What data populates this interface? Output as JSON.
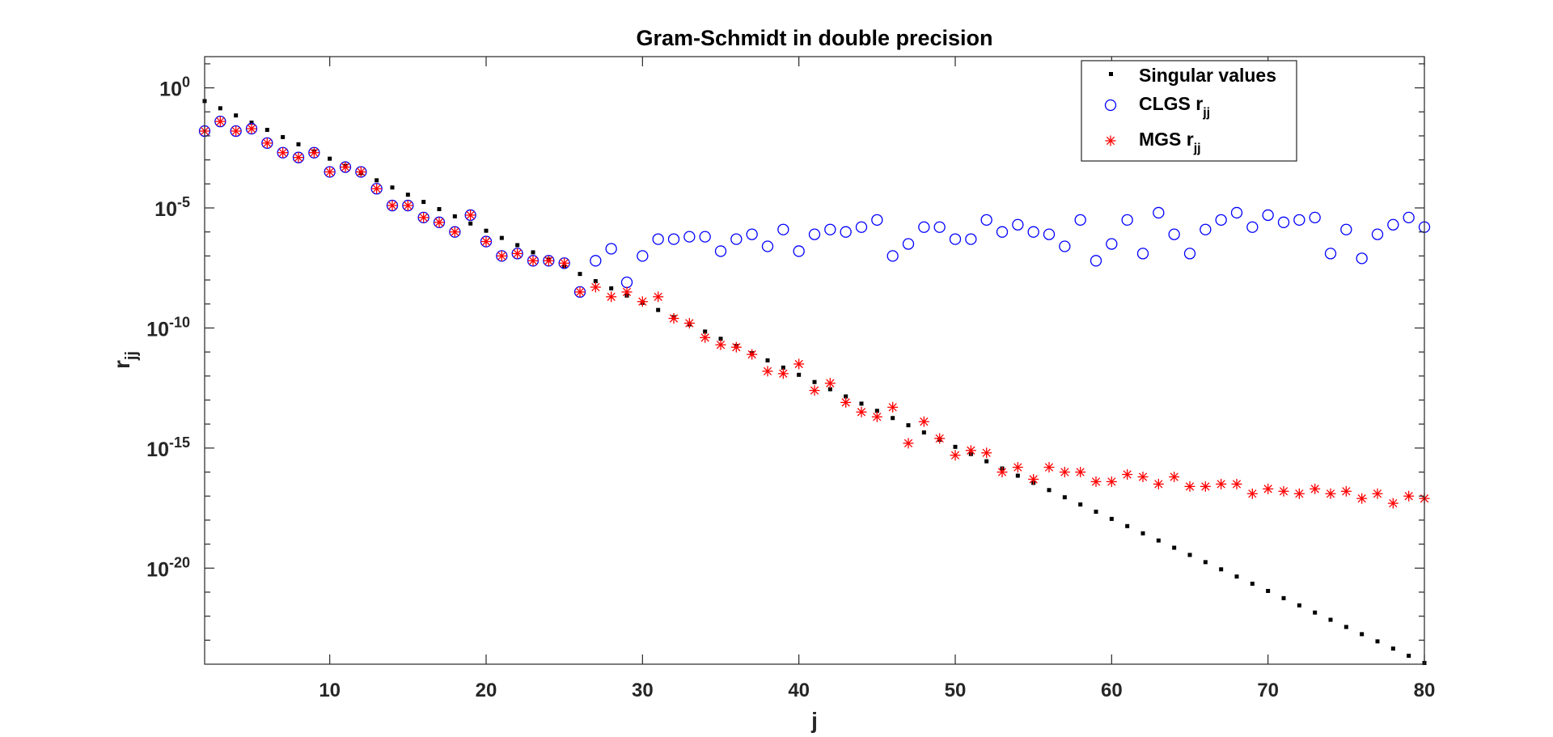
{
  "chart_data": {
    "type": "scatter",
    "title": "Gram-Schmidt in double precision",
    "xlabel": "j",
    "ylabel": {
      "base": "r",
      "sub": "jj"
    },
    "xlim": [
      2,
      80
    ],
    "ylim_log10": [
      -24,
      1.3
    ],
    "yscale": "log",
    "grid": false,
    "legend_position": "top-right",
    "xticks": [
      10,
      20,
      30,
      40,
      50,
      60,
      70,
      80
    ],
    "yticks": [
      {
        "base": "10",
        "exp": "0",
        "log10": 0
      },
      {
        "base": "10",
        "exp": "-5",
        "log10": -5
      },
      {
        "base": "10",
        "exp": "-10",
        "log10": -10
      },
      {
        "base": "10",
        "exp": "-15",
        "log10": -15
      },
      {
        "base": "10",
        "exp": "-20",
        "log10": -20
      }
    ],
    "colors": {
      "singular": "#000000",
      "clgs": "#0000ff",
      "mgs": "#ff0000",
      "axis": "#262626"
    },
    "series": [
      {
        "name": "Singular values",
        "marker": "dot",
        "x": [
          2,
          3,
          4,
          5,
          6,
          7,
          8,
          9,
          10,
          11,
          12,
          13,
          14,
          15,
          16,
          17,
          18,
          19,
          20,
          21,
          22,
          23,
          24,
          25,
          26,
          27,
          28,
          29,
          30,
          31,
          32,
          33,
          34,
          35,
          36,
          37,
          38,
          39,
          40,
          41,
          42,
          43,
          44,
          45,
          46,
          47,
          48,
          49,
          50,
          51,
          52,
          53,
          54,
          55,
          56,
          57,
          58,
          59,
          60,
          61,
          62,
          63,
          64,
          65,
          66,
          67,
          68,
          69,
          70,
          71,
          72,
          73,
          74,
          75,
          76,
          77,
          78,
          79,
          80
        ],
        "y_log10": [
          -0.55,
          -0.85,
          -1.15,
          -1.45,
          -1.75,
          -2.05,
          -2.35,
          -2.65,
          -2.95,
          -3.25,
          -3.55,
          -3.85,
          -4.15,
          -4.45,
          -4.75,
          -5.05,
          -5.35,
          -5.65,
          -5.95,
          -6.25,
          -6.55,
          -6.85,
          -7.15,
          -7.45,
          -7.75,
          -8.05,
          -8.35,
          -8.65,
          -8.95,
          -9.25,
          -9.55,
          -9.85,
          -10.15,
          -10.45,
          -10.75,
          -11.05,
          -11.35,
          -11.65,
          -11.95,
          -12.25,
          -12.55,
          -12.85,
          -13.15,
          -13.45,
          -13.75,
          -14.05,
          -14.35,
          -14.65,
          -14.95,
          -15.25,
          -15.55,
          -15.85,
          -16.15,
          -16.45,
          -16.75,
          -17.05,
          -17.35,
          -17.65,
          -17.95,
          -18.25,
          -18.55,
          -18.85,
          -19.15,
          -19.45,
          -19.75,
          -20.05,
          -20.35,
          -20.65,
          -20.95,
          -21.25,
          -21.55,
          -21.85,
          -22.15,
          -22.45,
          -22.75,
          -23.05,
          -23.35,
          -23.65,
          -23.95
        ]
      },
      {
        "name": "CLGS r",
        "name_sub": "jj",
        "marker": "circle",
        "x": [
          2,
          3,
          4,
          5,
          6,
          7,
          8,
          9,
          10,
          11,
          12,
          13,
          14,
          15,
          16,
          17,
          18,
          19,
          20,
          21,
          22,
          23,
          24,
          25,
          26,
          27,
          28,
          29,
          30,
          31,
          32,
          33,
          34,
          35,
          36,
          37,
          38,
          39,
          40,
          41,
          42,
          43,
          44,
          45,
          46,
          47,
          48,
          49,
          50,
          51,
          52,
          53,
          54,
          55,
          56,
          57,
          58,
          59,
          60,
          61,
          62,
          63,
          64,
          65,
          66,
          67,
          68,
          69,
          70,
          71,
          72,
          73,
          74,
          75,
          76,
          77,
          78,
          79,
          80
        ],
        "y_log10": [
          -1.8,
          -1.4,
          -1.8,
          -1.7,
          -2.3,
          -2.7,
          -2.9,
          -2.7,
          -3.5,
          -3.3,
          -3.5,
          -4.2,
          -4.9,
          -4.9,
          -5.4,
          -5.6,
          -6.0,
          -5.3,
          -6.4,
          -7.0,
          -6.9,
          -7.2,
          -7.2,
          -7.3,
          -8.5,
          -7.2,
          -6.7,
          -8.1,
          -7.0,
          -6.3,
          -6.3,
          -6.2,
          -6.2,
          -6.8,
          -6.3,
          -6.1,
          -6.6,
          -5.9,
          -6.8,
          -6.1,
          -5.9,
          -6.0,
          -5.8,
          -5.5,
          -7.0,
          -6.5,
          -5.8,
          -5.8,
          -6.3,
          -6.3,
          -5.5,
          -6.0,
          -5.7,
          -6.0,
          -6.1,
          -6.6,
          -5.5,
          -7.2,
          -6.5,
          -5.5,
          -6.9,
          -5.2,
          -6.1,
          -6.9,
          -5.9,
          -5.5,
          -5.2,
          -5.8,
          -5.3,
          -5.6,
          -5.5,
          -5.4,
          -6.9,
          -5.9,
          -7.1,
          -6.1,
          -5.7,
          -5.4,
          -5.8
        ]
      },
      {
        "name": "MGS r",
        "name_sub": "jj",
        "marker": "asterisk",
        "x": [
          2,
          3,
          4,
          5,
          6,
          7,
          8,
          9,
          10,
          11,
          12,
          13,
          14,
          15,
          16,
          17,
          18,
          19,
          20,
          21,
          22,
          23,
          24,
          25,
          26,
          27,
          28,
          29,
          30,
          31,
          32,
          33,
          34,
          35,
          36,
          37,
          38,
          39,
          40,
          41,
          42,
          43,
          44,
          45,
          46,
          47,
          48,
          49,
          50,
          51,
          52,
          53,
          54,
          55,
          56,
          57,
          58,
          59,
          60,
          61,
          62,
          63,
          64,
          65,
          66,
          67,
          68,
          69,
          70,
          71,
          72,
          73,
          74,
          75,
          76,
          77,
          78,
          79,
          80
        ],
        "y_log10": [
          -1.8,
          -1.4,
          -1.8,
          -1.7,
          -2.3,
          -2.7,
          -2.9,
          -2.7,
          -3.5,
          -3.3,
          -3.5,
          -4.2,
          -4.9,
          -4.9,
          -5.4,
          -5.6,
          -6.0,
          -5.3,
          -6.4,
          -7.0,
          -6.9,
          -7.2,
          -7.2,
          -7.3,
          -8.5,
          -8.3,
          -8.7,
          -8.5,
          -8.9,
          -8.7,
          -9.6,
          -9.8,
          -10.4,
          -10.7,
          -10.8,
          -11.1,
          -11.8,
          -11.9,
          -11.5,
          -12.6,
          -12.3,
          -13.1,
          -13.5,
          -13.7,
          -13.3,
          -14.8,
          -13.9,
          -14.6,
          -15.3,
          -15.1,
          -15.2,
          -16.0,
          -15.8,
          -16.3,
          -15.8,
          -16.0,
          -16.0,
          -16.4,
          -16.4,
          -16.1,
          -16.2,
          -16.5,
          -16.2,
          -16.6,
          -16.6,
          -16.5,
          -16.5,
          -16.9,
          -16.7,
          -16.8,
          -16.9,
          -16.7,
          -16.9,
          -16.8,
          -17.1,
          -16.9,
          -17.3,
          -17.0,
          -17.1
        ]
      }
    ]
  }
}
